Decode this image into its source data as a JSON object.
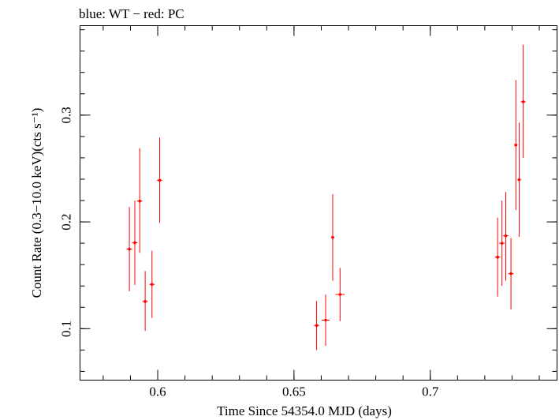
{
  "chart_data": {
    "type": "scatter",
    "title": "blue: WT − red: PC",
    "xlabel": "Time Since 54354.0 MJD (days)",
    "ylabel": "Count Rate (0.3−10.0 keV)(cts s⁻¹)",
    "xlim": [
      0.5715,
      0.7465
    ],
    "ylim": [
      0.0518,
      0.3838
    ],
    "xticks": [
      {
        "value": 0.6,
        "label": "0.6"
      },
      {
        "value": 0.65,
        "label": "0.65"
      },
      {
        "value": 0.7,
        "label": "0.7"
      }
    ],
    "yticks": [
      {
        "value": 0.1,
        "label": "0.1"
      },
      {
        "value": 0.2,
        "label": "0.2"
      },
      {
        "value": 0.3,
        "label": "0.3"
      }
    ],
    "xminor_step": 0.01,
    "yminor_step": 0.02,
    "series": [
      {
        "name": "PC",
        "color": "#ff0000",
        "points": [
          {
            "x": 0.5896,
            "y": 0.1745,
            "xerr": 0.001,
            "ylo": 0.135,
            "yhi": 0.214
          },
          {
            "x": 0.5916,
            "y": 0.1805,
            "xerr": 0.001,
            "ylo": 0.141,
            "yhi": 0.22
          },
          {
            "x": 0.5934,
            "y": 0.2195,
            "xerr": 0.001,
            "ylo": 0.171,
            "yhi": 0.269
          },
          {
            "x": 0.5954,
            "y": 0.1255,
            "xerr": 0.001,
            "ylo": 0.098,
            "yhi": 0.154
          },
          {
            "x": 0.5979,
            "y": 0.1415,
            "xerr": 0.001,
            "ylo": 0.11,
            "yhi": 0.173
          },
          {
            "x": 0.6007,
            "y": 0.239,
            "xerr": 0.001,
            "ylo": 0.199,
            "yhi": 0.279
          },
          {
            "x": 0.6583,
            "y": 0.103,
            "xerr": 0.001,
            "ylo": 0.08,
            "yhi": 0.126
          },
          {
            "x": 0.6616,
            "y": 0.108,
            "xerr": 0.0015,
            "ylo": 0.084,
            "yhi": 0.132
          },
          {
            "x": 0.6642,
            "y": 0.1855,
            "xerr": 0.0006,
            "ylo": 0.145,
            "yhi": 0.226
          },
          {
            "x": 0.6669,
            "y": 0.132,
            "xerr": 0.0017,
            "ylo": 0.107,
            "yhi": 0.157
          },
          {
            "x": 0.7247,
            "y": 0.167,
            "xerr": 0.001,
            "ylo": 0.13,
            "yhi": 0.204
          },
          {
            "x": 0.7263,
            "y": 0.18,
            "xerr": 0.001,
            "ylo": 0.14,
            "yhi": 0.22
          },
          {
            "x": 0.7277,
            "y": 0.187,
            "xerr": 0.001,
            "ylo": 0.145,
            "yhi": 0.228
          },
          {
            "x": 0.7296,
            "y": 0.1515,
            "xerr": 0.001,
            "ylo": 0.118,
            "yhi": 0.185
          },
          {
            "x": 0.7314,
            "y": 0.272,
            "xerr": 0.0006,
            "ylo": 0.211,
            "yhi": 0.333
          },
          {
            "x": 0.7326,
            "y": 0.2395,
            "xerr": 0.0006,
            "ylo": 0.186,
            "yhi": 0.293
          },
          {
            "x": 0.7341,
            "y": 0.3125,
            "xerr": 0.0009,
            "ylo": 0.26,
            "yhi": 0.366
          }
        ]
      }
    ]
  }
}
